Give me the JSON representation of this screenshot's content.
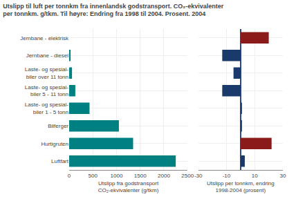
{
  "chart_data": [
    {
      "type": "bar",
      "orientation": "horizontal",
      "title": "Utslipp til luft per tonnkm fra innenlandsk godstransport. CO₂-ekvivalenter\nper tonnkm. g/tkm. Til høyre: Endring fra 1998 til 2004. Prosent. 2004",
      "categories": [
        "Luftfart",
        "Hurtigruten",
        "Bilferger",
        "Laste- og spesial-\nbiler 1 - 5 tonn",
        "Laste- og spesial-\nbiler 5 - 11 tonn",
        "Laste- og spesial-\nbiler over 11 tonn",
        "Jernbane - diesel",
        "Jernbane - elektrisk"
      ],
      "values": [
        2250,
        1350,
        1050,
        430,
        130,
        60,
        30,
        0
      ],
      "color": "#008080",
      "xlim": [
        0,
        2500
      ],
      "xticks": [
        0,
        500,
        1000,
        1500,
        2000,
        2500
      ],
      "xlabel": "Utslipp fra godstransport\nCO₂-ekvivalenter (g/tkm)",
      "grid": true
    },
    {
      "type": "bar",
      "orientation": "horizontal",
      "categories": [
        "Luftfart",
        "Hurtigruten",
        "Bilferger",
        "Laste- og spesial-\nbiler 1 - 5 tonn",
        "Laste- og spesial-\nbiler 5 - 11 tonn",
        "Laste- og spesial-\nbiler over 11 tonn",
        "Jernbane - diesel",
        "Jernbane - elektrisk"
      ],
      "values": [
        3,
        22,
        1,
        1,
        -13,
        -5,
        -13,
        20
      ],
      "colors": [
        "#1a3a6b",
        "#8b1a1a",
        "#1a3a6b",
        "#1a3a6b",
        "#1a3a6b",
        "#1a3a6b",
        "#1a3a6b",
        "#8b1a1a"
      ],
      "xlim": [
        -30,
        30
      ],
      "xticks": [
        -30,
        -10,
        10,
        30
      ],
      "xlabel": "Utslipp per tonnkm, endring\n1998-2004 (prosent)",
      "grid": true,
      "tick_labels": "x"
    }
  ]
}
